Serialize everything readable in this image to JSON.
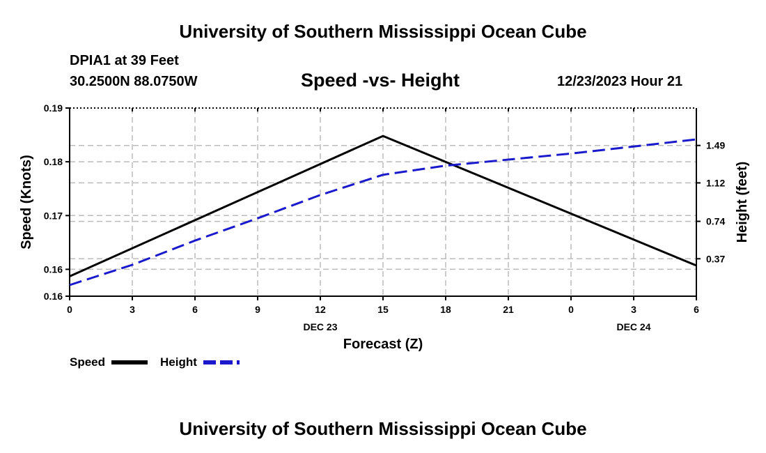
{
  "header": {
    "title": "University of Southern Mississippi Ocean Cube",
    "station": "DPIA1 at 39 Feet",
    "coords": "30.2500N  88.0750W",
    "datetime": "12/23/2023 Hour 21"
  },
  "footer": {
    "title": "University of Southern Mississippi Ocean Cube"
  },
  "chart_data": {
    "type": "line",
    "title": "Speed -vs- Height",
    "xlabel": "Forecast (Z)",
    "ylabel_left": "Speed (Knots)",
    "ylabel_right": "Height (feet)",
    "x": [
      0,
      3,
      6,
      9,
      12,
      15,
      18,
      21,
      24,
      27,
      30
    ],
    "xlim": [
      0,
      30
    ],
    "x_tick_labels": [
      "0",
      "3",
      "6",
      "9",
      "12",
      "15",
      "18",
      "21",
      "0",
      "3",
      "6"
    ],
    "date_labels": [
      {
        "x": 12,
        "label": "DEC 23"
      },
      {
        "x": 27,
        "label": "DEC 24"
      }
    ],
    "ylim_left": [
      0.155,
      0.19
    ],
    "y_left_ticks": [
      {
        "value": 0.155,
        "label": "0.16"
      },
      {
        "value": 0.16,
        "label": "0.16"
      },
      {
        "value": 0.17,
        "label": "0.17"
      },
      {
        "value": 0.18,
        "label": "0.18"
      },
      {
        "value": 0.19,
        "label": "0.19"
      }
    ],
    "ylim_right": [
      0.0,
      1.86
    ],
    "y_right_ticks": [
      {
        "value": 0.37,
        "label": "0.37"
      },
      {
        "value": 0.74,
        "label": "0.74"
      },
      {
        "value": 1.12,
        "label": "1.12"
      },
      {
        "value": 1.49,
        "label": "1.49"
      }
    ],
    "grid": true,
    "series": [
      {
        "name": "Speed",
        "axis": "left",
        "color": "#000000",
        "dash": false,
        "points": [
          [
            0,
            0.1587
          ],
          [
            15,
            0.1848
          ],
          [
            30,
            0.1607
          ]
        ]
      },
      {
        "name": "Height",
        "axis": "right",
        "color": "#1a1acc",
        "dash": true,
        "points": [
          [
            0,
            0.11
          ],
          [
            3,
            0.31
          ],
          [
            6,
            0.55
          ],
          [
            9,
            0.77
          ],
          [
            12,
            1.0
          ],
          [
            15,
            1.2
          ],
          [
            18,
            1.29
          ],
          [
            21,
            1.35
          ],
          [
            24,
            1.41
          ],
          [
            27,
            1.48
          ],
          [
            30,
            1.55
          ]
        ]
      }
    ],
    "legend": [
      {
        "label": "Speed",
        "color": "#000000",
        "dash": false
      },
      {
        "label": "Height",
        "color": "#1a1acc",
        "dash": true
      }
    ]
  }
}
